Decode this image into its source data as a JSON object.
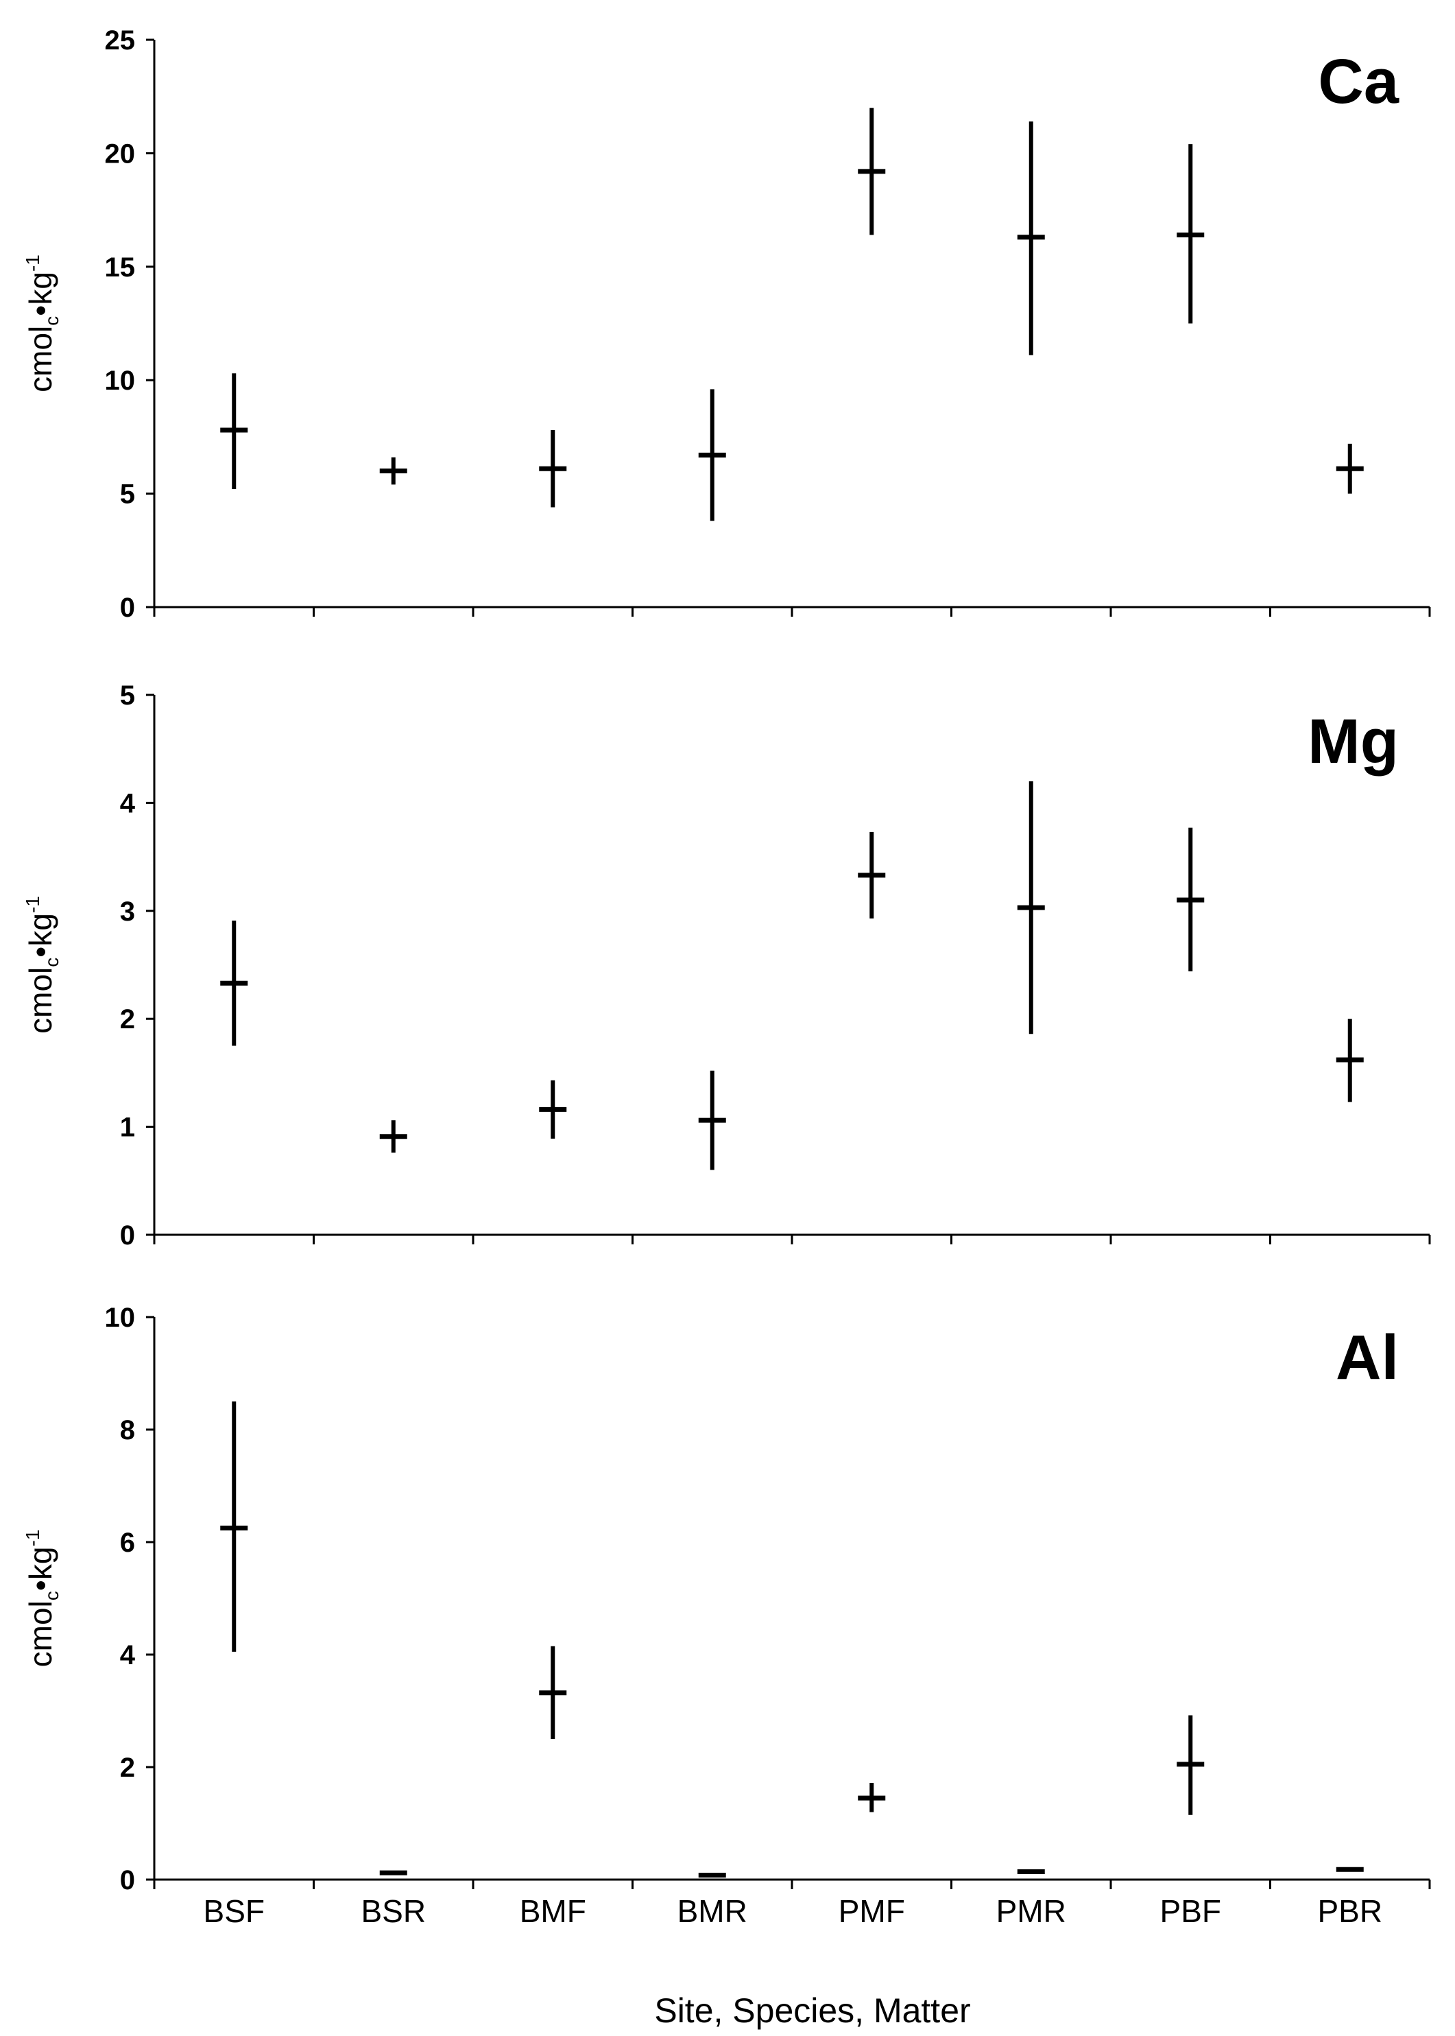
{
  "chart_data": {
    "type": "scatter",
    "style": "mean with range bars",
    "xlabel": "Site, Species, Matter",
    "categories": [
      "BSF",
      "BSR",
      "BMF",
      "BMR",
      "PMF",
      "PMR",
      "PBF",
      "PBR"
    ],
    "ylabel": {
      "main": "cmol",
      "sub": "c",
      "mid": "•kg",
      "sup": "-1"
    },
    "grid": false,
    "legend": "none",
    "panels": [
      {
        "title": "Ca",
        "ylim": [
          0,
          25
        ],
        "yticks": [
          0,
          5,
          10,
          15,
          20,
          25
        ],
        "points": [
          {
            "category": "BSF",
            "mean": 7.8,
            "low": 5.2,
            "high": 10.3
          },
          {
            "category": "BSR",
            "mean": 6.0,
            "low": 5.4,
            "high": 6.6
          },
          {
            "category": "BMF",
            "mean": 6.1,
            "low": 4.4,
            "high": 7.8
          },
          {
            "category": "BMR",
            "mean": 6.7,
            "low": 3.8,
            "high": 9.6
          },
          {
            "category": "PMF",
            "mean": 19.2,
            "low": 16.4,
            "high": 22.0
          },
          {
            "category": "PMR",
            "mean": 16.3,
            "low": 11.1,
            "high": 21.4
          },
          {
            "category": "PBF",
            "mean": 16.4,
            "low": 12.5,
            "high": 20.4
          },
          {
            "category": "PBR",
            "mean": 6.1,
            "low": 5.0,
            "high": 7.2
          }
        ]
      },
      {
        "title": "Mg",
        "ylim": [
          0,
          5
        ],
        "yticks": [
          0,
          1,
          2,
          3,
          4,
          5
        ],
        "points": [
          {
            "category": "BSF",
            "mean": 2.33,
            "low": 1.75,
            "high": 2.91
          },
          {
            "category": "BSR",
            "mean": 0.91,
            "low": 0.76,
            "high": 1.06
          },
          {
            "category": "BMF",
            "mean": 1.16,
            "low": 0.89,
            "high": 1.43
          },
          {
            "category": "BMR",
            "mean": 1.06,
            "low": 0.6,
            "high": 1.52
          },
          {
            "category": "PMF",
            "mean": 3.33,
            "low": 2.93,
            "high": 3.73
          },
          {
            "category": "PMR",
            "mean": 3.03,
            "low": 1.86,
            "high": 4.2
          },
          {
            "category": "PBF",
            "mean": 3.1,
            "low": 2.44,
            "high": 3.77
          },
          {
            "category": "PBR",
            "mean": 1.62,
            "low": 1.23,
            "high": 2.0
          }
        ]
      },
      {
        "title": "Al",
        "ylim": [
          0,
          10
        ],
        "yticks": [
          0,
          2,
          4,
          6,
          8,
          10
        ],
        "points": [
          {
            "category": "BSF",
            "mean": 6.25,
            "low": 4.05,
            "high": 8.5
          },
          {
            "category": "BSR",
            "mean": 0.12,
            "low": 0.12,
            "high": 0.12
          },
          {
            "category": "BMF",
            "mean": 3.32,
            "low": 2.5,
            "high": 4.15
          },
          {
            "category": "BMR",
            "mean": 0.08,
            "low": 0.08,
            "high": 0.08
          },
          {
            "category": "PMF",
            "mean": 1.45,
            "low": 1.2,
            "high": 1.72
          },
          {
            "category": "PMR",
            "mean": 0.14,
            "low": 0.14,
            "high": 0.14
          },
          {
            "category": "PBF",
            "mean": 2.05,
            "low": 1.15,
            "high": 2.92
          },
          {
            "category": "PBR",
            "mean": 0.18,
            "low": 0.18,
            "high": 0.18
          }
        ]
      }
    ]
  }
}
